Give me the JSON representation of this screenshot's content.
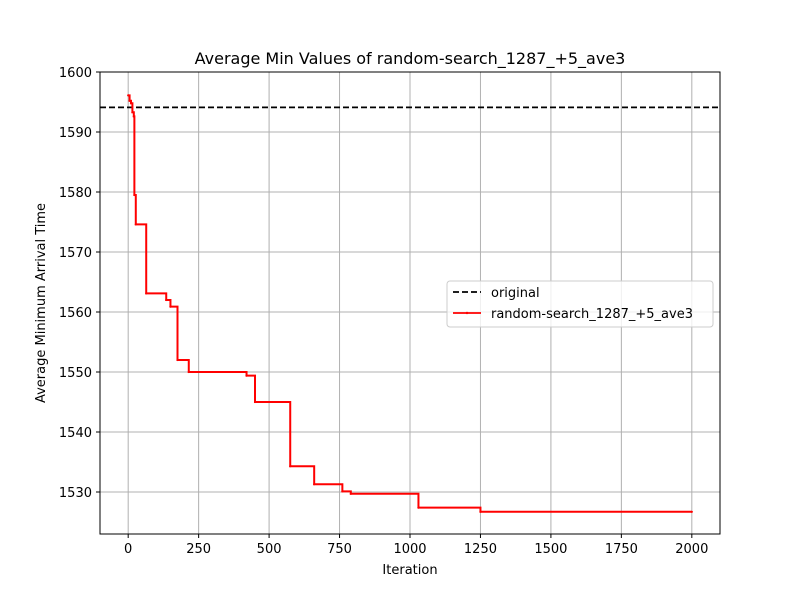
{
  "chart_data": {
    "type": "line",
    "title": "Average Min Values of random-search_1287_+5_ave3",
    "xlabel": "Iteration",
    "ylabel": "Average Minimum Arrival Time",
    "xlim": [
      -100,
      2100
    ],
    "ylim": [
      1523,
      1600
    ],
    "xticks": [
      0,
      250,
      500,
      750,
      1000,
      1250,
      1500,
      1750,
      2000
    ],
    "yticks": [
      1530,
      1540,
      1550,
      1560,
      1570,
      1580,
      1590,
      1600
    ],
    "grid": true,
    "legend_position": "center-right",
    "series": [
      {
        "name": "original",
        "style": "dashed",
        "color": "#000000",
        "constant": 1594.1
      },
      {
        "name": "random-search_1287_+5_ave3",
        "style": "solid-step",
        "color": "#ff0000",
        "points": [
          [
            0,
            1596.1
          ],
          [
            5,
            1595.2
          ],
          [
            10,
            1594.8
          ],
          [
            15,
            1593.3
          ],
          [
            20,
            1592.6
          ],
          [
            22,
            1579.5
          ],
          [
            27,
            1574.6
          ],
          [
            64,
            1563.1
          ],
          [
            135,
            1562.0
          ],
          [
            150,
            1560.9
          ],
          [
            175,
            1552.0
          ],
          [
            215,
            1550.0
          ],
          [
            420,
            1549.4
          ],
          [
            450,
            1545.0
          ],
          [
            575,
            1534.3
          ],
          [
            660,
            1531.3
          ],
          [
            760,
            1530.1
          ],
          [
            790,
            1529.7
          ],
          [
            1030,
            1527.4
          ],
          [
            1250,
            1526.7
          ],
          [
            2000,
            1526.7
          ]
        ]
      }
    ]
  }
}
